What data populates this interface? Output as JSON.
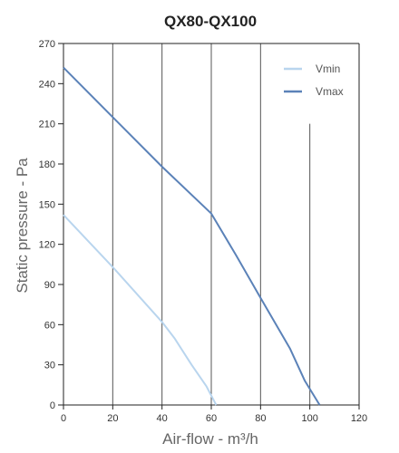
{
  "chart_data": {
    "type": "line",
    "title": "QX80-QX100",
    "xlabel": "Air-flow - m³/h",
    "ylabel": "Static pressure - Pa",
    "xlim": [
      0,
      120
    ],
    "ylim": [
      0,
      270
    ],
    "xticks": [
      "0",
      "20",
      "40",
      "60",
      "80",
      "100",
      "120"
    ],
    "yticks": [
      "0",
      "30",
      "60",
      "90",
      "120",
      "150",
      "180",
      "210",
      "240",
      "270"
    ],
    "grid": "vertical",
    "legend": "top-right",
    "series": [
      {
        "name": "Vmin",
        "color": "#b9d5ee",
        "points": [
          [
            0,
            142
          ],
          [
            20,
            103
          ],
          [
            40,
            62
          ],
          [
            45,
            50
          ],
          [
            52,
            30
          ],
          [
            58,
            14
          ],
          [
            62,
            0
          ]
        ]
      },
      {
        "name": "Vmax",
        "color": "#5b82b8",
        "points": [
          [
            0,
            252
          ],
          [
            20,
            215
          ],
          [
            40,
            178
          ],
          [
            60,
            143
          ],
          [
            70,
            112
          ],
          [
            80,
            80
          ],
          [
            92,
            42
          ],
          [
            98,
            18
          ],
          [
            104,
            0
          ]
        ]
      }
    ]
  }
}
